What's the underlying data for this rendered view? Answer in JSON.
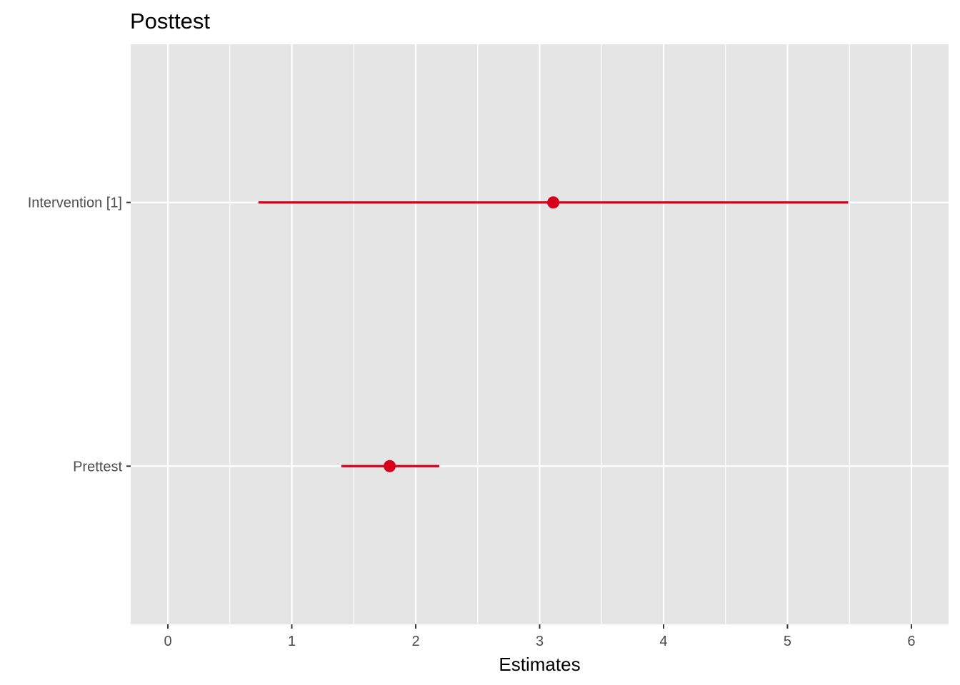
{
  "chart_data": {
    "type": "forest",
    "title": "Posttest",
    "xlabel": "Estimates",
    "ylabel": "",
    "xlim": [
      -0.3,
      6.3
    ],
    "x_ticks": [
      "0",
      "1",
      "2",
      "3",
      "4",
      "5",
      "6"
    ],
    "grid": true,
    "terms": [
      {
        "label": "Prettest",
        "estimate": 1.79,
        "ci_low": 1.4,
        "ci_high": 2.19
      },
      {
        "label": "Intervention [1]",
        "estimate": 3.11,
        "ci_low": 0.73,
        "ci_high": 5.49
      }
    ],
    "colors": {
      "point": "#d7001b",
      "panel": "#e5e5e5",
      "grid": "#ffffff"
    }
  }
}
